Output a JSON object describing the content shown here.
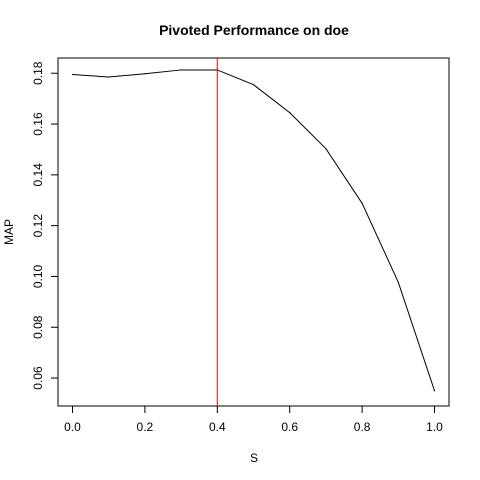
{
  "chart_data": {
    "type": "line",
    "title": "Pivoted Performance on doe",
    "xlabel": "S",
    "ylabel": "MAP",
    "xlim": [
      -0.04,
      1.04
    ],
    "ylim": [
      0.049,
      0.186
    ],
    "xticks": [
      0.0,
      0.2,
      0.4,
      0.6,
      0.8,
      1.0
    ],
    "xtick_labels": [
      "0.0",
      "0.2",
      "0.4",
      "0.6",
      "0.8",
      "1.0"
    ],
    "yticks": [
      0.06,
      0.08,
      0.1,
      0.12,
      0.14,
      0.16,
      0.18
    ],
    "ytick_labels": [
      "0.06",
      "0.08",
      "0.10",
      "0.12",
      "0.14",
      "0.16",
      "0.18"
    ],
    "grid": false,
    "series": [
      {
        "color": "#000000",
        "x": [
          0.0,
          0.1,
          0.2,
          0.3,
          0.4,
          0.5,
          0.6,
          0.7,
          0.8,
          0.9,
          1.0
        ],
        "y": [
          0.1795,
          0.1785,
          0.1798,
          0.1813,
          0.1813,
          0.1755,
          0.1645,
          0.1503,
          0.1288,
          0.0977,
          0.055
        ]
      }
    ],
    "vline": {
      "x": 0.4,
      "color": "#ff0000"
    }
  }
}
